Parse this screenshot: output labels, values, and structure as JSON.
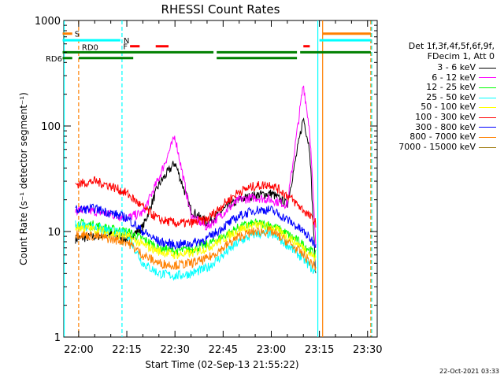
{
  "chart_data": {
    "type": "line",
    "title": "RHESSI Count Rates",
    "xlabel": "Start Time (02-Sep-13 21:55:22)",
    "ylabel": "Count Rate (s⁻¹ detector segment⁻¹)",
    "yscale": "log",
    "ylim": [
      1,
      1000
    ],
    "xlim": [
      "21:55:22",
      "23:33:00"
    ],
    "x_ticks": [
      "22:00",
      "22:15",
      "22:30",
      "22:45",
      "23:00",
      "23:15",
      "23:30"
    ],
    "y_ticks": [
      "1",
      "10",
      "100",
      "1000"
    ],
    "legend_title": [
      "Det 1f,3f,4f,5f,6f,9f,",
      "FDecim 1, Att 0"
    ],
    "legend_position": "right",
    "series": [
      {
        "name": "3 - 6 keV",
        "color": "#000000",
        "x": [
          "21:59",
          "22:05",
          "22:10",
          "22:15",
          "22:20",
          "22:25",
          "22:30",
          "22:35",
          "22:40",
          "22:45",
          "22:50",
          "22:55",
          "23:00",
          "23:05",
          "23:10",
          "23:12",
          "23:14"
        ],
        "y": [
          8.5,
          9,
          9.5,
          8.5,
          11,
          28,
          45,
          16,
          12,
          16,
          20,
          22,
          23,
          18,
          120,
          60,
          3
        ]
      },
      {
        "name": "6 - 12 keV",
        "color": "#ff00ff",
        "x": [
          "21:59",
          "22:05",
          "22:10",
          "22:15",
          "22:20",
          "22:25",
          "22:30",
          "22:35",
          "22:40",
          "22:45",
          "22:50",
          "22:55",
          "23:00",
          "23:05",
          "23:10",
          "23:12",
          "23:14"
        ],
        "y": [
          16,
          15.5,
          14.5,
          13.5,
          15,
          32,
          80,
          14,
          11,
          15,
          20,
          21,
          20,
          18,
          250,
          90,
          6
        ]
      },
      {
        "name": "12 - 25 keV",
        "color": "#00ff00",
        "x": [
          "21:59",
          "22:05",
          "22:10",
          "22:15",
          "22:20",
          "22:25",
          "22:30",
          "22:35",
          "22:40",
          "22:45",
          "22:50",
          "22:55",
          "23:00",
          "23:05",
          "23:10",
          "23:14"
        ],
        "y": [
          12,
          11.5,
          10.5,
          10,
          8.5,
          7,
          6.5,
          6.8,
          7.5,
          9,
          11,
          12,
          11.5,
          9.5,
          7.5,
          6
        ]
      },
      {
        "name": "25 - 50 keV",
        "color": "#00ffff",
        "x": [
          "21:59",
          "22:05",
          "22:10",
          "22:15",
          "22:20",
          "22:25",
          "22:30",
          "22:35",
          "22:40",
          "22:45",
          "22:50",
          "22:55",
          "23:00",
          "23:05",
          "23:10",
          "23:14"
        ],
        "y": [
          11.5,
          11,
          10,
          9.5,
          5,
          4,
          3.8,
          4,
          4.5,
          6,
          8,
          9.5,
          9.5,
          7.5,
          5.5,
          4
        ]
      },
      {
        "name": "50 - 100 keV",
        "color": "#ffff00",
        "x": [
          "21:59",
          "22:05",
          "22:10",
          "22:15",
          "22:20",
          "22:25",
          "22:30",
          "22:35",
          "22:40",
          "22:45",
          "22:50",
          "22:55",
          "23:00",
          "23:05",
          "23:10",
          "23:14"
        ],
        "y": [
          11,
          10.5,
          9.5,
          9,
          7.5,
          6.5,
          6,
          6.2,
          7,
          8.5,
          10.5,
          11.5,
          11,
          9,
          7,
          5.5
        ]
      },
      {
        "name": "100 - 300 keV",
        "color": "#ff0000",
        "x": [
          "21:59",
          "22:05",
          "22:10",
          "22:15",
          "22:20",
          "22:25",
          "22:30",
          "22:35",
          "22:40",
          "22:45",
          "22:50",
          "22:55",
          "23:00",
          "23:05",
          "23:10",
          "23:14"
        ],
        "y": [
          28,
          30,
          27,
          23,
          17,
          13,
          12,
          12,
          13,
          18,
          24,
          27,
          28,
          22,
          16,
          12
        ]
      },
      {
        "name": "300 - 800 keV",
        "color": "#0000ff",
        "x": [
          "21:59",
          "22:05",
          "22:10",
          "22:15",
          "22:20",
          "22:25",
          "22:30",
          "22:35",
          "22:40",
          "22:45",
          "22:50",
          "22:55",
          "23:00",
          "23:05",
          "23:10",
          "23:14"
        ],
        "y": [
          16,
          16.5,
          15,
          13.5,
          10,
          8,
          7.5,
          7.7,
          8.5,
          11,
          14,
          16,
          16,
          13,
          10,
          7.5
        ]
      },
      {
        "name": "800 - 7000 keV",
        "color": "#ff8000",
        "x": [
          "21:59",
          "22:05",
          "22:10",
          "22:15",
          "22:20",
          "22:25",
          "22:30",
          "22:35",
          "22:40",
          "22:45",
          "22:50",
          "22:55",
          "23:00",
          "23:05",
          "23:10",
          "23:14"
        ],
        "y": [
          9.5,
          9,
          8.5,
          8,
          6,
          5,
          4.8,
          5,
          5.5,
          7,
          9,
          10,
          10,
          8,
          6,
          4.5
        ]
      },
      {
        "name": "7000 - 15000 keV",
        "color": "#997300",
        "x": [],
        "y": []
      }
    ],
    "annotations": [
      {
        "label": "S",
        "color": "#ff8000",
        "segments": [
          [
            "21:55",
            "21:58"
          ],
          [
            "23:16",
            "23:31"
          ]
        ],
        "level": 750
      },
      {
        "label": "N",
        "color": "#00ffff",
        "segments": [
          [
            "21:55",
            "22:13"
          ],
          [
            "23:15",
            "23:31"
          ]
        ],
        "level": 650
      },
      {
        "label": "F",
        "color": "#ff0000",
        "segments": [
          [
            "22:16",
            "22:19"
          ],
          [
            "22:24",
            "22:28"
          ],
          [
            "23:10",
            "23:12"
          ]
        ],
        "level": 570
      },
      {
        "label": "RD0",
        "color": "#008000",
        "segments": [
          [
            "21:55",
            "22:42"
          ],
          [
            "22:43",
            "23:08"
          ],
          [
            "23:09",
            "23:31"
          ]
        ],
        "level": 500
      },
      {
        "label": "RD6",
        "color": "#008000",
        "segments": [
          [
            "21:55",
            "21:58"
          ],
          [
            "22:00",
            "22:17"
          ],
          [
            "22:43",
            "23:08"
          ]
        ],
        "level": 440
      }
    ],
    "vlines": [
      {
        "x": "21:55:30",
        "color": "#00ffff",
        "style": "solid"
      },
      {
        "x": "22:00",
        "color": "#ff8000",
        "style": "dashed"
      },
      {
        "x": "22:13:30",
        "color": "#00ffff",
        "style": "dashed"
      },
      {
        "x": "23:14:30",
        "color": "#00ffff",
        "style": "solid"
      },
      {
        "x": "23:16",
        "color": "#ff8000",
        "style": "solid"
      },
      {
        "x": "23:31",
        "color": "#ff8000",
        "style": "dashed"
      },
      {
        "x": "23:31.3",
        "color": "#00ffff",
        "style": "dashed"
      }
    ]
  },
  "footer": {
    "timestamp": "22-Oct-2021 03:33"
  }
}
